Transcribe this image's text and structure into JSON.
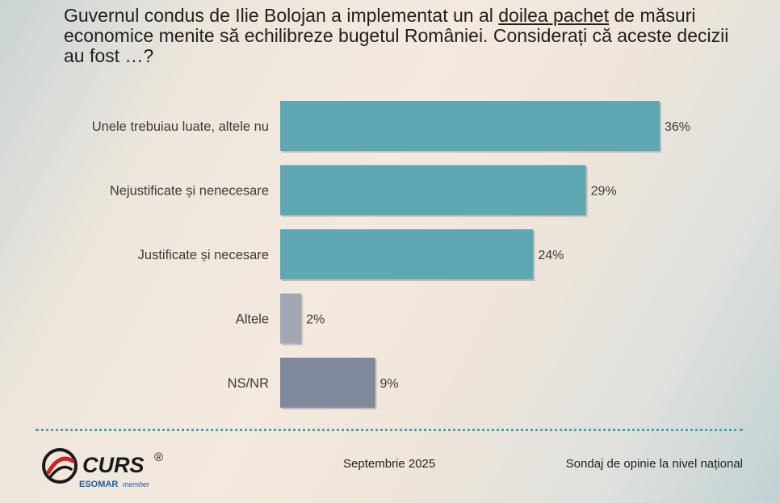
{
  "question": {
    "part1": "Guvernul condus de Ilie Bolojan a implementat un al ",
    "underlined": "doilea pachet",
    "part2": " de măsuri economice menite să echilibreze bugetul României. Considerați că aceste decizii au fost …?"
  },
  "chart_data": {
    "type": "bar",
    "orientation": "horizontal",
    "categories": [
      "Unele trebuiau luate, altele nu",
      "Nejustificate și nenecesare",
      "Justificate și necesare",
      "Altele",
      "NS/NR"
    ],
    "values": [
      36,
      29,
      24,
      2,
      9
    ],
    "value_labels": [
      "36%",
      "29%",
      "24%",
      "2%",
      "9%"
    ],
    "colors": [
      "#5ea7b3",
      "#5ea7b3",
      "#5ea7b3",
      "#a1a7b3",
      "#7f899c"
    ],
    "grid": false,
    "legend": "none"
  },
  "footer": {
    "logo_text": "CURS",
    "registered_mark": "®",
    "esomar": "ESOMAR",
    "member": "member",
    "date": "Septembrie 2025",
    "subtitle": "Sondaj de opinie la nivel național"
  }
}
